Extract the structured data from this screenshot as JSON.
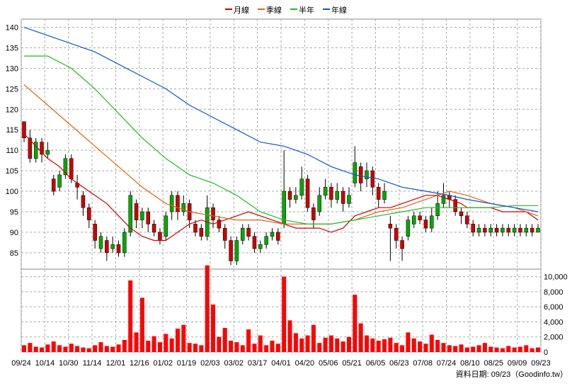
{
  "chart_data": [
    {
      "type": "candlestick",
      "panel": "price",
      "ylim": [
        81,
        142
      ],
      "y_ticks": [
        85,
        90,
        95,
        100,
        105,
        110,
        115,
        120,
        125,
        130,
        135,
        140
      ],
      "grid": true,
      "legend_position": "top-center",
      "colors": {
        "up": "#00aa00",
        "down": "#cc0000"
      },
      "moving_averages": [
        {
          "name": "月線",
          "color": "#cc0000",
          "points": [
            [
              0,
              114
            ],
            [
              2,
              111
            ],
            [
              4,
              108
            ],
            [
              6,
              106
            ],
            [
              8,
              103
            ],
            [
              10,
              101
            ],
            [
              12,
              99
            ],
            [
              14,
              97
            ],
            [
              16,
              94
            ],
            [
              18,
              91
            ],
            [
              20,
              89
            ],
            [
              22,
              88
            ],
            [
              24,
              88
            ],
            [
              26,
              90
            ],
            [
              28,
              92
            ],
            [
              30,
              93
            ],
            [
              32,
              92
            ],
            [
              34,
              93
            ],
            [
              36,
              94
            ],
            [
              38,
              95
            ],
            [
              40,
              94
            ],
            [
              42,
              93
            ],
            [
              44,
              92
            ],
            [
              46,
              91
            ],
            [
              48,
              91
            ],
            [
              50,
              91
            ],
            [
              52,
              90
            ],
            [
              54,
              91
            ],
            [
              56,
              94
            ],
            [
              58,
              95
            ],
            [
              60,
              96
            ],
            [
              62,
              96
            ],
            [
              64,
              97
            ],
            [
              66,
              98
            ],
            [
              68,
              99
            ],
            [
              70,
              99
            ],
            [
              72,
              98
            ],
            [
              74,
              97
            ],
            [
              75,
              96
            ],
            [
              77,
              96
            ],
            [
              79,
              96
            ],
            [
              81,
              95
            ],
            [
              83,
              95
            ],
            [
              85,
              95
            ],
            [
              87,
              93
            ]
          ]
        },
        {
          "name": "季線",
          "color": "#dd6611",
          "points": [
            [
              0,
              126
            ],
            [
              4,
              121
            ],
            [
              8,
              116
            ],
            [
              12,
              111
            ],
            [
              16,
              106
            ],
            [
              20,
              101
            ],
            [
              24,
              97
            ],
            [
              28,
              95
            ],
            [
              32,
              94
            ],
            [
              36,
              93
            ],
            [
              40,
              93
            ],
            [
              44,
              92
            ],
            [
              48,
              92
            ],
            [
              52,
              92
            ],
            [
              56,
              93
            ],
            [
              60,
              95
            ],
            [
              64,
              96
            ],
            [
              68,
              98
            ],
            [
              72,
              100
            ],
            [
              75,
              99
            ],
            [
              79,
              97
            ],
            [
              83,
              96
            ],
            [
              87,
              94
            ]
          ]
        },
        {
          "name": "半年",
          "color": "#22bb22",
          "points": [
            [
              0,
              133
            ],
            [
              4,
              133
            ],
            [
              8,
              130
            ],
            [
              12,
              125
            ],
            [
              16,
              119
            ],
            [
              20,
              113
            ],
            [
              24,
              108
            ],
            [
              28,
              104
            ],
            [
              32,
              102
            ],
            [
              36,
              99
            ],
            [
              40,
              95
            ],
            [
              44,
              93
            ],
            [
              48,
              92
            ],
            [
              52,
              92
            ],
            [
              56,
              93
            ],
            [
              60,
              94
            ],
            [
              64,
              95
            ],
            [
              68,
              96
            ],
            [
              72,
              96
            ],
            [
              75,
              96
            ],
            [
              79,
              96
            ],
            [
              83,
              96.5
            ],
            [
              87,
              96.5
            ]
          ]
        },
        {
          "name": "年線",
          "color": "#1155cc",
          "points": [
            [
              0,
              140
            ],
            [
              4,
              138
            ],
            [
              8,
              136
            ],
            [
              12,
              134
            ],
            [
              16,
              131
            ],
            [
              20,
              128
            ],
            [
              24,
              125
            ],
            [
              28,
              121
            ],
            [
              32,
              118
            ],
            [
              36,
              115
            ],
            [
              40,
              112
            ],
            [
              44,
              111
            ],
            [
              48,
              109
            ],
            [
              52,
              106
            ],
            [
              56,
              104
            ],
            [
              60,
              103
            ],
            [
              64,
              101
            ],
            [
              68,
              100
            ],
            [
              72,
              99
            ],
            [
              75,
              98
            ],
            [
              79,
              97
            ],
            [
              83,
              96
            ],
            [
              87,
              95
            ]
          ]
        }
      ],
      "candles": [
        [
          0,
          117,
          113,
          117,
          112
        ],
        [
          1,
          113,
          108,
          115,
          107
        ],
        [
          2,
          108,
          112,
          113,
          107
        ],
        [
          3,
          112,
          109,
          113,
          107
        ],
        [
          4,
          109,
          110,
          112,
          108
        ],
        [
          5,
          103,
          100,
          104,
          99
        ],
        [
          6,
          101,
          104,
          105,
          100
        ],
        [
          7,
          104,
          108,
          109,
          103
        ],
        [
          8,
          108,
          103,
          109,
          102
        ],
        [
          9,
          102,
          101,
          104,
          98
        ],
        [
          10,
          99,
          96,
          100,
          94
        ],
        [
          11,
          96,
          93,
          97,
          91
        ],
        [
          12,
          92,
          88,
          93,
          86
        ],
        [
          13,
          86,
          89,
          90,
          85
        ],
        [
          14,
          88,
          85,
          89,
          83
        ],
        [
          15,
          86,
          87,
          89,
          85
        ],
        [
          16,
          87,
          85,
          88,
          84
        ],
        [
          17,
          85,
          90,
          91,
          84
        ],
        [
          18,
          90,
          99,
          100,
          89
        ],
        [
          19,
          97,
          93,
          98,
          91
        ],
        [
          20,
          93,
          95,
          96,
          91
        ],
        [
          21,
          95,
          92,
          96,
          90
        ],
        [
          22,
          92,
          90,
          93,
          89
        ],
        [
          23,
          90,
          88,
          91,
          87
        ],
        [
          24,
          89,
          94,
          95,
          88
        ],
        [
          25,
          95,
          99,
          100,
          93
        ],
        [
          26,
          99,
          95,
          100,
          93
        ],
        [
          27,
          95,
          97,
          99,
          94
        ],
        [
          28,
          97,
          93,
          98,
          91
        ],
        [
          29,
          92,
          90,
          93,
          89
        ],
        [
          30,
          91,
          89,
          92,
          88
        ],
        [
          31,
          89,
          96,
          99,
          88
        ],
        [
          32,
          96,
          93,
          97,
          91
        ],
        [
          33,
          93,
          91,
          94,
          90
        ],
        [
          34,
          91,
          88,
          92,
          86
        ],
        [
          35,
          88,
          83,
          89,
          82
        ],
        [
          36,
          83,
          88,
          89,
          82
        ],
        [
          37,
          88,
          91,
          92,
          87
        ],
        [
          38,
          91,
          89,
          92,
          88
        ],
        [
          39,
          89,
          86,
          90,
          85
        ],
        [
          40,
          86,
          87,
          88,
          85
        ],
        [
          41,
          87,
          89,
          90,
          86
        ],
        [
          42,
          89,
          90,
          91,
          88
        ],
        [
          43,
          90,
          88,
          91,
          87
        ],
        [
          44,
          92,
          100,
          110,
          91
        ],
        [
          45,
          100,
          98,
          101,
          96
        ],
        [
          46,
          98,
          99,
          101,
          97
        ],
        [
          47,
          99,
          103,
          106,
          98
        ],
        [
          48,
          103,
          96,
          104,
          95
        ],
        [
          49,
          96,
          93,
          97,
          91
        ],
        [
          50,
          95,
          99,
          101,
          94
        ],
        [
          51,
          99,
          101,
          103,
          98
        ],
        [
          52,
          101,
          98,
          102,
          96
        ],
        [
          53,
          98,
          100,
          102,
          97
        ],
        [
          54,
          100,
          97,
          101,
          95
        ],
        [
          55,
          97,
          99,
          101,
          96
        ],
        [
          56,
          102,
          107,
          111,
          101
        ],
        [
          57,
          106,
          102,
          107,
          100
        ],
        [
          58,
          103,
          105,
          107,
          101
        ],
        [
          59,
          105,
          101,
          106,
          99
        ],
        [
          60,
          101,
          98,
          102,
          96
        ],
        [
          61,
          98,
          100,
          102,
          97
        ],
        [
          62,
          92,
          91,
          94,
          83
        ],
        [
          63,
          91,
          88,
          92,
          86
        ],
        [
          64,
          88,
          86,
          89,
          83
        ],
        [
          65,
          89,
          93,
          94,
          88
        ],
        [
          66,
          92,
          94,
          95,
          91
        ],
        [
          67,
          94,
          93,
          95,
          92
        ],
        [
          68,
          93,
          91,
          94,
          90
        ],
        [
          69,
          91,
          94,
          96,
          90
        ],
        [
          70,
          94,
          97,
          100,
          93
        ],
        [
          71,
          97,
          99,
          102,
          96
        ],
        [
          72,
          99,
          98,
          100,
          96
        ],
        [
          73,
          98,
          95,
          99,
          94
        ],
        [
          74,
          95,
          94,
          96,
          92
        ],
        [
          75,
          94,
          92,
          95,
          91
        ],
        [
          76,
          92,
          90,
          93,
          89
        ],
        [
          77,
          90,
          91,
          92,
          89
        ],
        [
          78,
          91,
          90,
          92,
          89
        ],
        [
          79,
          90,
          91,
          92,
          89
        ],
        [
          80,
          91,
          90,
          92,
          89
        ],
        [
          81,
          90,
          91,
          92,
          89
        ],
        [
          82,
          91,
          90,
          92,
          89
        ],
        [
          83,
          90,
          91,
          92,
          89
        ],
        [
          84,
          91,
          90,
          92,
          89
        ],
        [
          85,
          90,
          91,
          92,
          89
        ],
        [
          86,
          91,
          90,
          92,
          89
        ],
        [
          87,
          90,
          91,
          92,
          90
        ]
      ]
    },
    {
      "type": "bar",
      "panel": "volume",
      "ylim": [
        0,
        11000
      ],
      "y_ticks": [
        0,
        2000,
        4000,
        6000,
        8000,
        10000
      ],
      "y_tick_labels": [
        "0",
        "2,000",
        "4,000",
        "6,000",
        "8,000",
        "10,000"
      ],
      "color": "#ff0000",
      "values": [
        900,
        1200,
        700,
        600,
        1000,
        1400,
        900,
        700,
        1100,
        800,
        600,
        500,
        900,
        1300,
        800,
        700,
        1000,
        1600,
        9500,
        2600,
        7200,
        1500,
        2100,
        1300,
        2400,
        1800,
        3100,
        3600,
        1200,
        1100,
        900,
        11500,
        6300,
        2000,
        3200,
        1500,
        1300,
        900,
        3000,
        1100,
        2200,
        900,
        1500,
        1100,
        10000,
        4200,
        2500,
        1800,
        2200,
        3600,
        1200,
        1900,
        2200,
        1800,
        1400,
        2000,
        7600,
        3800,
        2200,
        1800,
        1500,
        1700,
        1900,
        1200,
        900,
        2600,
        1800,
        1400,
        1100,
        2300,
        1600,
        1200,
        900,
        800,
        1000,
        600,
        700,
        900,
        1200,
        700,
        600,
        500,
        800,
        600,
        700,
        900,
        500,
        600
      ],
      "x_tick_labels": [
        "09/24",
        "10/14",
        "10/30",
        "11/14",
        "12/01",
        "12/16",
        "01/02",
        "01/19",
        "02/03",
        "03/02",
        "03/17",
        "04/01",
        "04/20",
        "05/06",
        "05/21",
        "06/05",
        "06/23",
        "07/08",
        "07/24",
        "08/10",
        "08/25",
        "09/09",
        "09/23"
      ]
    }
  ],
  "legend": [
    {
      "label": "月線",
      "color": "#cc0000"
    },
    {
      "label": "季線",
      "color": "#dd6611"
    },
    {
      "label": "半年",
      "color": "#22bb22"
    },
    {
      "label": "年線",
      "color": "#1155cc"
    }
  ],
  "credit": "資料日期: 09/23（Goodinfo.tw）"
}
